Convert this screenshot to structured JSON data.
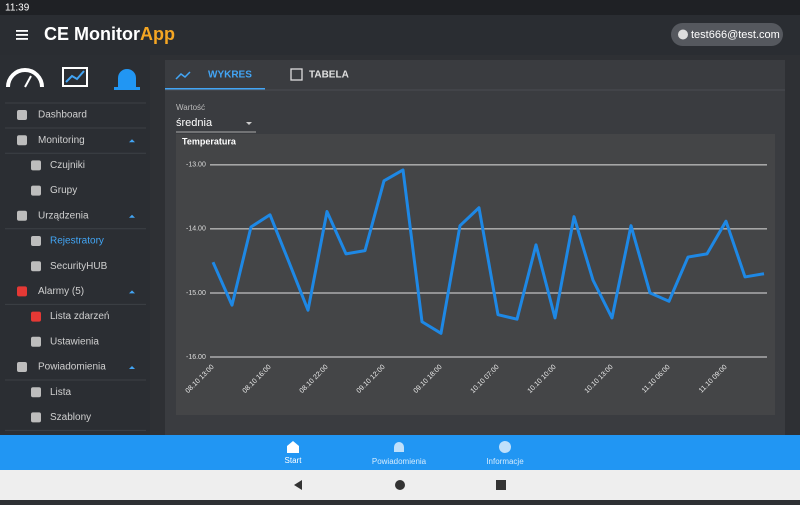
{
  "status_bar": {
    "time": "11:39"
  },
  "app_bar": {
    "title": "CE Monitor",
    "title_accent": "App",
    "user": "test666@test.com"
  },
  "sidebar": [
    "Dashboard",
    "Monitoring",
    "Czujniki",
    "Grupy",
    "Urządzenia",
    "Rejestratory",
    "SecurityHUB",
    "Alarmy (5)",
    "Lista zdarzeń",
    "Ustawienia",
    "Powiadomienia",
    "Lista",
    "Szablony"
  ],
  "tabs": [
    "WYKRES",
    "TABELA"
  ],
  "select": {
    "label": "Wartość",
    "value": "średnia"
  },
  "chart_data": {
    "type": "line",
    "title": "Temperatura",
    "categories": [
      "08.10 13:00",
      null,
      null,
      "08.10 16:00",
      null,
      null,
      "08.10 22:00",
      null,
      null,
      "09.10 12:00",
      null,
      null,
      "09.10 18:00",
      null,
      null,
      "10.10 07:00",
      null,
      null,
      "10.10 10:00",
      null,
      null,
      "10.10 13:00",
      null,
      null,
      "11.10 06:00",
      null,
      null,
      "11.10 09:00",
      null,
      null
    ],
    "series": [
      {
        "name": "Temperatura",
        "color": "#1e88e5",
        "values": [
          -14.52,
          -15.19,
          -13.97,
          -13.78,
          -14.52,
          -15.27,
          -13.73,
          -14.39,
          -14.34,
          -13.25,
          -13.08,
          -15.45,
          -15.63,
          -13.95,
          -13.67,
          -15.34,
          -15.41,
          -14.25,
          -15.39,
          -13.81,
          -14.8,
          -15.39,
          -13.95,
          -15.0,
          -15.13,
          -14.44,
          -14.39,
          -13.88,
          -14.75,
          -14.7
        ]
      }
    ],
    "ylim": [
      -16,
      -12.8
    ],
    "yticks": [
      {
        "value": -16,
        "label": "-16.00"
      },
      {
        "value": -15,
        "label": "-15.00"
      },
      {
        "value": -14,
        "label": "-14.00"
      },
      {
        "value": -13,
        "label": "-13.00"
      }
    ],
    "grid": true
  },
  "bottom_nav": [
    "Start",
    "Powiadomienia",
    "Informacje"
  ]
}
